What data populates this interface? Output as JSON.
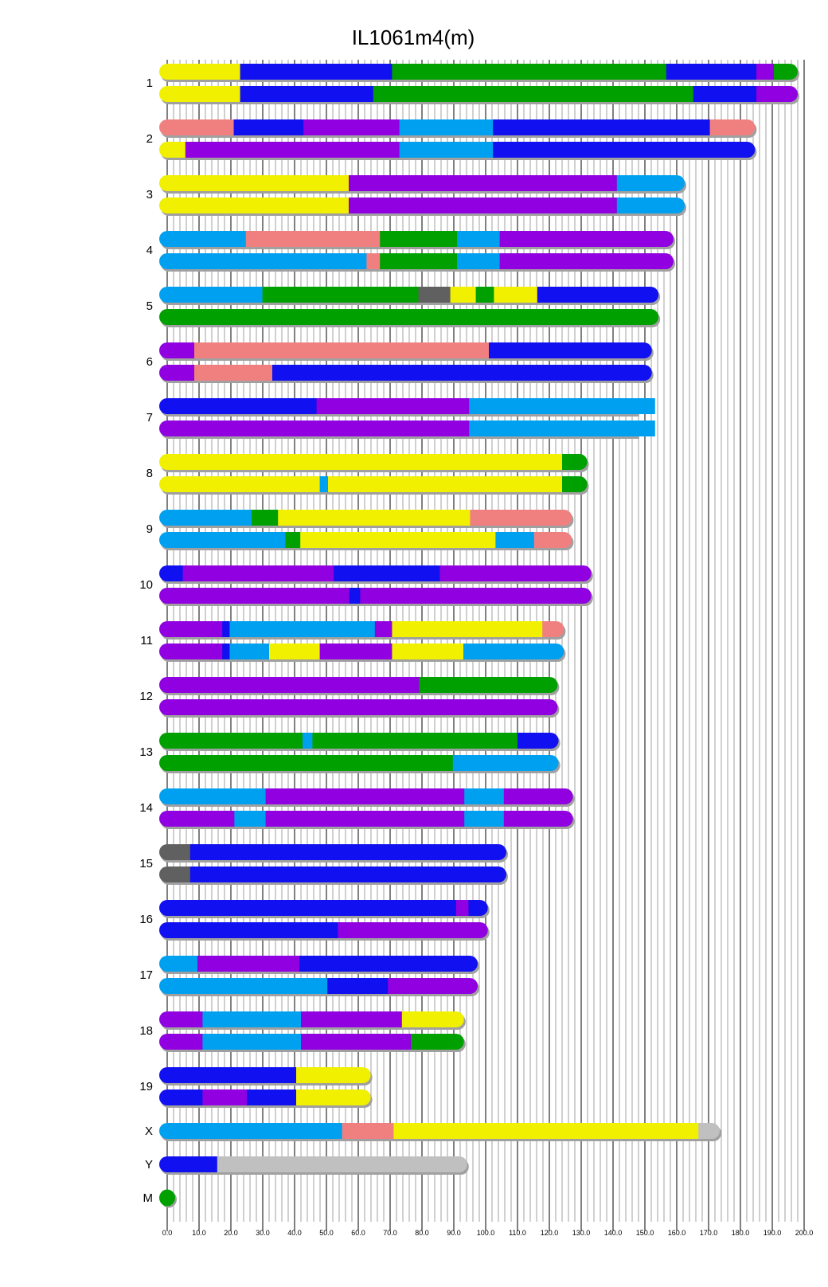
{
  "chart_data": {
    "type": "chromosome-painting",
    "title": "IL1061m4(m)",
    "x_range": [
      0,
      200
    ],
    "x_ticks": [
      "0.0",
      "10.0",
      "20.0",
      "30.0",
      "40.0",
      "50.0",
      "60.0",
      "70.0",
      "80.0",
      "90.0",
      "100.0",
      "110.0",
      "120.0",
      "130.0",
      "140.0",
      "150.0",
      "160.0",
      "170.0",
      "180.0",
      "190.0",
      "200.0"
    ],
    "grid": {
      "minor_step": 2,
      "major_step": 10
    },
    "colors": {
      "yellow": "#f0f000",
      "blue": "#1010f0",
      "green": "#00a000",
      "purple": "#9000e0",
      "lightblue": "#00a0f0",
      "salmon": "#f08080",
      "darkgrey": "#606060",
      "lightgrey": "#c0c0c0",
      "shadow": "#a0a0a0"
    },
    "chromosomes": [
      {
        "label": "1",
        "length": 195.5,
        "haplotypes": [
          [
            [
              0,
              22.9,
              "yellow"
            ],
            [
              22.9,
              70.6,
              "blue"
            ],
            [
              70.6,
              156.7,
              "green"
            ],
            [
              156.7,
              185,
              "blue"
            ],
            [
              185,
              190.5,
              "purple"
            ],
            [
              190.5,
              195.5,
              "green"
            ]
          ],
          [
            [
              0,
              22.9,
              "yellow"
            ],
            [
              22.9,
              64.7,
              "blue"
            ],
            [
              64.7,
              165.2,
              "green"
            ],
            [
              165.2,
              185,
              "blue"
            ],
            [
              185,
              195.5,
              "purple"
            ]
          ]
        ]
      },
      {
        "label": "2",
        "length": 182.1,
        "haplotypes": [
          [
            [
              0,
              20.9,
              "salmon"
            ],
            [
              20.9,
              42.8,
              "blue"
            ],
            [
              42.8,
              72.9,
              "purple"
            ],
            [
              72.9,
              102.3,
              "lightblue"
            ],
            [
              102.3,
              170.4,
              "blue"
            ],
            [
              170.4,
              182.1,
              "salmon"
            ]
          ],
          [
            [
              0,
              5.7,
              "yellow"
            ],
            [
              5.7,
              72.9,
              "purple"
            ],
            [
              72.9,
              102.3,
              "lightblue"
            ],
            [
              102.3,
              182.1,
              "blue"
            ]
          ]
        ]
      },
      {
        "label": "3",
        "length": 160.0,
        "haplotypes": [
          [
            [
              0,
              57,
              "yellow"
            ],
            [
              57,
              141.2,
              "purple"
            ],
            [
              141.2,
              160,
              "lightblue"
            ]
          ],
          [
            [
              0,
              57,
              "yellow"
            ],
            [
              57,
              141.2,
              "purple"
            ],
            [
              141.2,
              160,
              "lightblue"
            ]
          ]
        ]
      },
      {
        "label": "4",
        "length": 156.5,
        "haplotypes": [
          [
            [
              0,
              24.7,
              "lightblue"
            ],
            [
              24.7,
              66.8,
              "salmon"
            ],
            [
              66.8,
              91,
              "green"
            ],
            [
              91,
              104.4,
              "lightblue"
            ],
            [
              104.4,
              156.5,
              "purple"
            ]
          ],
          [
            [
              0,
              62.6,
              "lightblue"
            ],
            [
              62.6,
              66.8,
              "salmon"
            ],
            [
              66.8,
              91,
              "green"
            ],
            [
              91,
              104.4,
              "lightblue"
            ],
            [
              104.4,
              156.5,
              "purple"
            ]
          ]
        ]
      },
      {
        "label": "5",
        "length": 151.8,
        "haplotypes": [
          [
            [
              0,
              29.9,
              "lightblue"
            ],
            [
              29.9,
              78.9,
              "green"
            ],
            [
              78.9,
              88.9,
              "darkgrey"
            ],
            [
              88.9,
              96.9,
              "yellow"
            ],
            [
              96.9,
              102.6,
              "green"
            ],
            [
              102.6,
              116.2,
              "yellow"
            ],
            [
              116.2,
              151.8,
              "blue"
            ]
          ],
          [
            [
              0,
              151.8,
              "green"
            ]
          ]
        ]
      },
      {
        "label": "6",
        "length": 149.7,
        "haplotypes": [
          [
            [
              0,
              8.5,
              "purple"
            ],
            [
              8.5,
              101,
              "salmon"
            ],
            [
              101,
              149.7,
              "blue"
            ]
          ],
          [
            [
              0,
              8.5,
              "purple"
            ],
            [
              8.5,
              33,
              "salmon"
            ],
            [
              33,
              149.7,
              "blue"
            ]
          ]
        ]
      },
      {
        "label": "7",
        "length": 153.2,
        "flat_end": true,
        "haplotypes": [
          [
            [
              0,
              46.9,
              "blue"
            ],
            [
              46.9,
              94.8,
              "purple"
            ],
            [
              94.8,
              153.2,
              "lightblue"
            ]
          ],
          [
            [
              0,
              94.8,
              "purple"
            ],
            [
              94.8,
              153.2,
              "lightblue"
            ]
          ]
        ]
      },
      {
        "label": "8",
        "length": 129.4,
        "haplotypes": [
          [
            [
              0,
              124,
              "yellow"
            ],
            [
              124,
              129.4,
              "green"
            ]
          ],
          [
            [
              0,
              47.9,
              "yellow"
            ],
            [
              47.9,
              50.5,
              "lightblue"
            ],
            [
              50.5,
              124,
              "yellow"
            ],
            [
              124,
              129.4,
              "green"
            ]
          ]
        ]
      },
      {
        "label": "9",
        "length": 124.6,
        "haplotypes": [
          [
            [
              0,
              26.5,
              "lightblue"
            ],
            [
              26.5,
              34.8,
              "green"
            ],
            [
              34.8,
              95.1,
              "yellow"
            ],
            [
              95.1,
              124.6,
              "salmon"
            ]
          ],
          [
            [
              0,
              37.1,
              "lightblue"
            ],
            [
              37.1,
              41.8,
              "green"
            ],
            [
              41.8,
              103.1,
              "yellow"
            ],
            [
              103.1,
              115.2,
              "lightblue"
            ],
            [
              115.2,
              124.6,
              "salmon"
            ]
          ]
        ]
      },
      {
        "label": "10",
        "length": 130.7,
        "haplotypes": [
          [
            [
              0,
              4.9,
              "blue"
            ],
            [
              4.9,
              52.3,
              "purple"
            ],
            [
              52.3,
              85.6,
              "blue"
            ],
            [
              85.6,
              130.7,
              "purple"
            ]
          ],
          [
            [
              0,
              57.2,
              "purple"
            ],
            [
              57.2,
              60.6,
              "blue"
            ],
            [
              60.6,
              130.7,
              "purple"
            ]
          ]
        ]
      },
      {
        "label": "11",
        "length": 122.1,
        "haplotypes": [
          [
            [
              0,
              17.3,
              "purple"
            ],
            [
              17.3,
              19.6,
              "blue"
            ],
            [
              19.6,
              65.2,
              "lightblue"
            ],
            [
              65.2,
              70.6,
              "purple"
            ],
            [
              70.6,
              117.8,
              "yellow"
            ],
            [
              117.8,
              122.1,
              "salmon"
            ]
          ],
          [
            [
              0,
              17.3,
              "purple"
            ],
            [
              17.3,
              19.6,
              "blue"
            ],
            [
              19.6,
              32,
              "lightblue"
            ],
            [
              32,
              47.9,
              "yellow"
            ],
            [
              47.9,
              70.6,
              "purple"
            ],
            [
              70.6,
              93,
              "yellow"
            ],
            [
              93,
              122.1,
              "lightblue"
            ]
          ]
        ]
      },
      {
        "label": "12",
        "length": 120.1,
        "haplotypes": [
          [
            [
              0,
              79.1,
              "purple"
            ],
            [
              79.1,
              120.1,
              "green"
            ]
          ],
          [
            [
              0,
              120.1,
              "purple"
            ]
          ]
        ]
      },
      {
        "label": "13",
        "length": 120.4,
        "haplotypes": [
          [
            [
              0,
              42.5,
              "green"
            ],
            [
              42.5,
              45.6,
              "lightblue"
            ],
            [
              45.6,
              110,
              "green"
            ],
            [
              110,
              120.4,
              "blue"
            ]
          ],
          [
            [
              0,
              89.7,
              "green"
            ],
            [
              89.7,
              120.4,
              "lightblue"
            ]
          ]
        ]
      },
      {
        "label": "14",
        "length": 124.9,
        "haplotypes": [
          [
            [
              0,
              30.9,
              "lightblue"
            ],
            [
              30.9,
              93.3,
              "purple"
            ],
            [
              93.3,
              105.7,
              "lightblue"
            ],
            [
              105.7,
              124.9,
              "purple"
            ]
          ],
          [
            [
              0,
              21.1,
              "purple"
            ],
            [
              21.1,
              30.9,
              "lightblue"
            ],
            [
              30.9,
              93.3,
              "purple"
            ],
            [
              93.3,
              105.7,
              "lightblue"
            ],
            [
              105.7,
              124.9,
              "purple"
            ]
          ]
        ]
      },
      {
        "label": "15",
        "length": 104.0,
        "haplotypes": [
          [
            [
              0,
              7.2,
              "darkgrey"
            ],
            [
              7.2,
              104,
              "blue"
            ]
          ],
          [
            [
              0,
              7.2,
              "darkgrey"
            ],
            [
              7.2,
              104,
              "blue"
            ]
          ]
        ]
      },
      {
        "label": "16",
        "length": 98.2,
        "haplotypes": [
          [
            [
              0,
              90.7,
              "blue"
            ],
            [
              90.7,
              94.6,
              "purple"
            ],
            [
              94.6,
              98.2,
              "blue"
            ]
          ],
          [
            [
              0,
              53.6,
              "blue"
            ],
            [
              53.6,
              98.2,
              "purple"
            ]
          ]
        ]
      },
      {
        "label": "17",
        "length": 95.0,
        "haplotypes": [
          [
            [
              0,
              9.5,
              "lightblue"
            ],
            [
              9.5,
              41.5,
              "purple"
            ],
            [
              41.5,
              95,
              "blue"
            ]
          ],
          [
            [
              0,
              50.3,
              "lightblue"
            ],
            [
              50.3,
              69.3,
              "blue"
            ],
            [
              69.3,
              95,
              "purple"
            ]
          ]
        ]
      },
      {
        "label": "18",
        "length": 90.7,
        "haplotypes": [
          [
            [
              0,
              11.1,
              "purple"
            ],
            [
              11.1,
              42,
              "lightblue"
            ],
            [
              42,
              73.7,
              "purple"
            ],
            [
              73.7,
              90.7,
              "yellow"
            ]
          ],
          [
            [
              0,
              11.1,
              "purple"
            ],
            [
              11.1,
              42,
              "lightblue"
            ],
            [
              42,
              76.5,
              "purple"
            ],
            [
              76.5,
              90.7,
              "green"
            ]
          ]
        ]
      },
      {
        "label": "19",
        "length": 61.4,
        "haplotypes": [
          [
            [
              0,
              40.5,
              "blue"
            ],
            [
              40.5,
              61.4,
              "yellow"
            ]
          ],
          [
            [
              0,
              11.1,
              "blue"
            ],
            [
              11.1,
              25,
              "purple"
            ],
            [
              25,
              40.5,
              "blue"
            ],
            [
              40.5,
              61.4,
              "yellow"
            ]
          ]
        ]
      },
      {
        "label": "X",
        "length": 171.0,
        "haplotypes": [
          [
            [
              0,
              54.9,
              "lightblue"
            ],
            [
              54.9,
              71.1,
              "salmon"
            ],
            [
              71.1,
              166.8,
              "yellow"
            ],
            [
              166.8,
              171,
              "lightgrey"
            ]
          ]
        ]
      },
      {
        "label": "Y",
        "length": 91.7,
        "haplotypes": [
          [
            [
              0,
              15.7,
              "blue"
            ],
            [
              15.7,
              91.7,
              "lightgrey"
            ]
          ]
        ]
      },
      {
        "label": "M",
        "length": 0,
        "haplotypes": [
          [
            [
              0,
              0,
              "green"
            ]
          ]
        ]
      }
    ]
  }
}
